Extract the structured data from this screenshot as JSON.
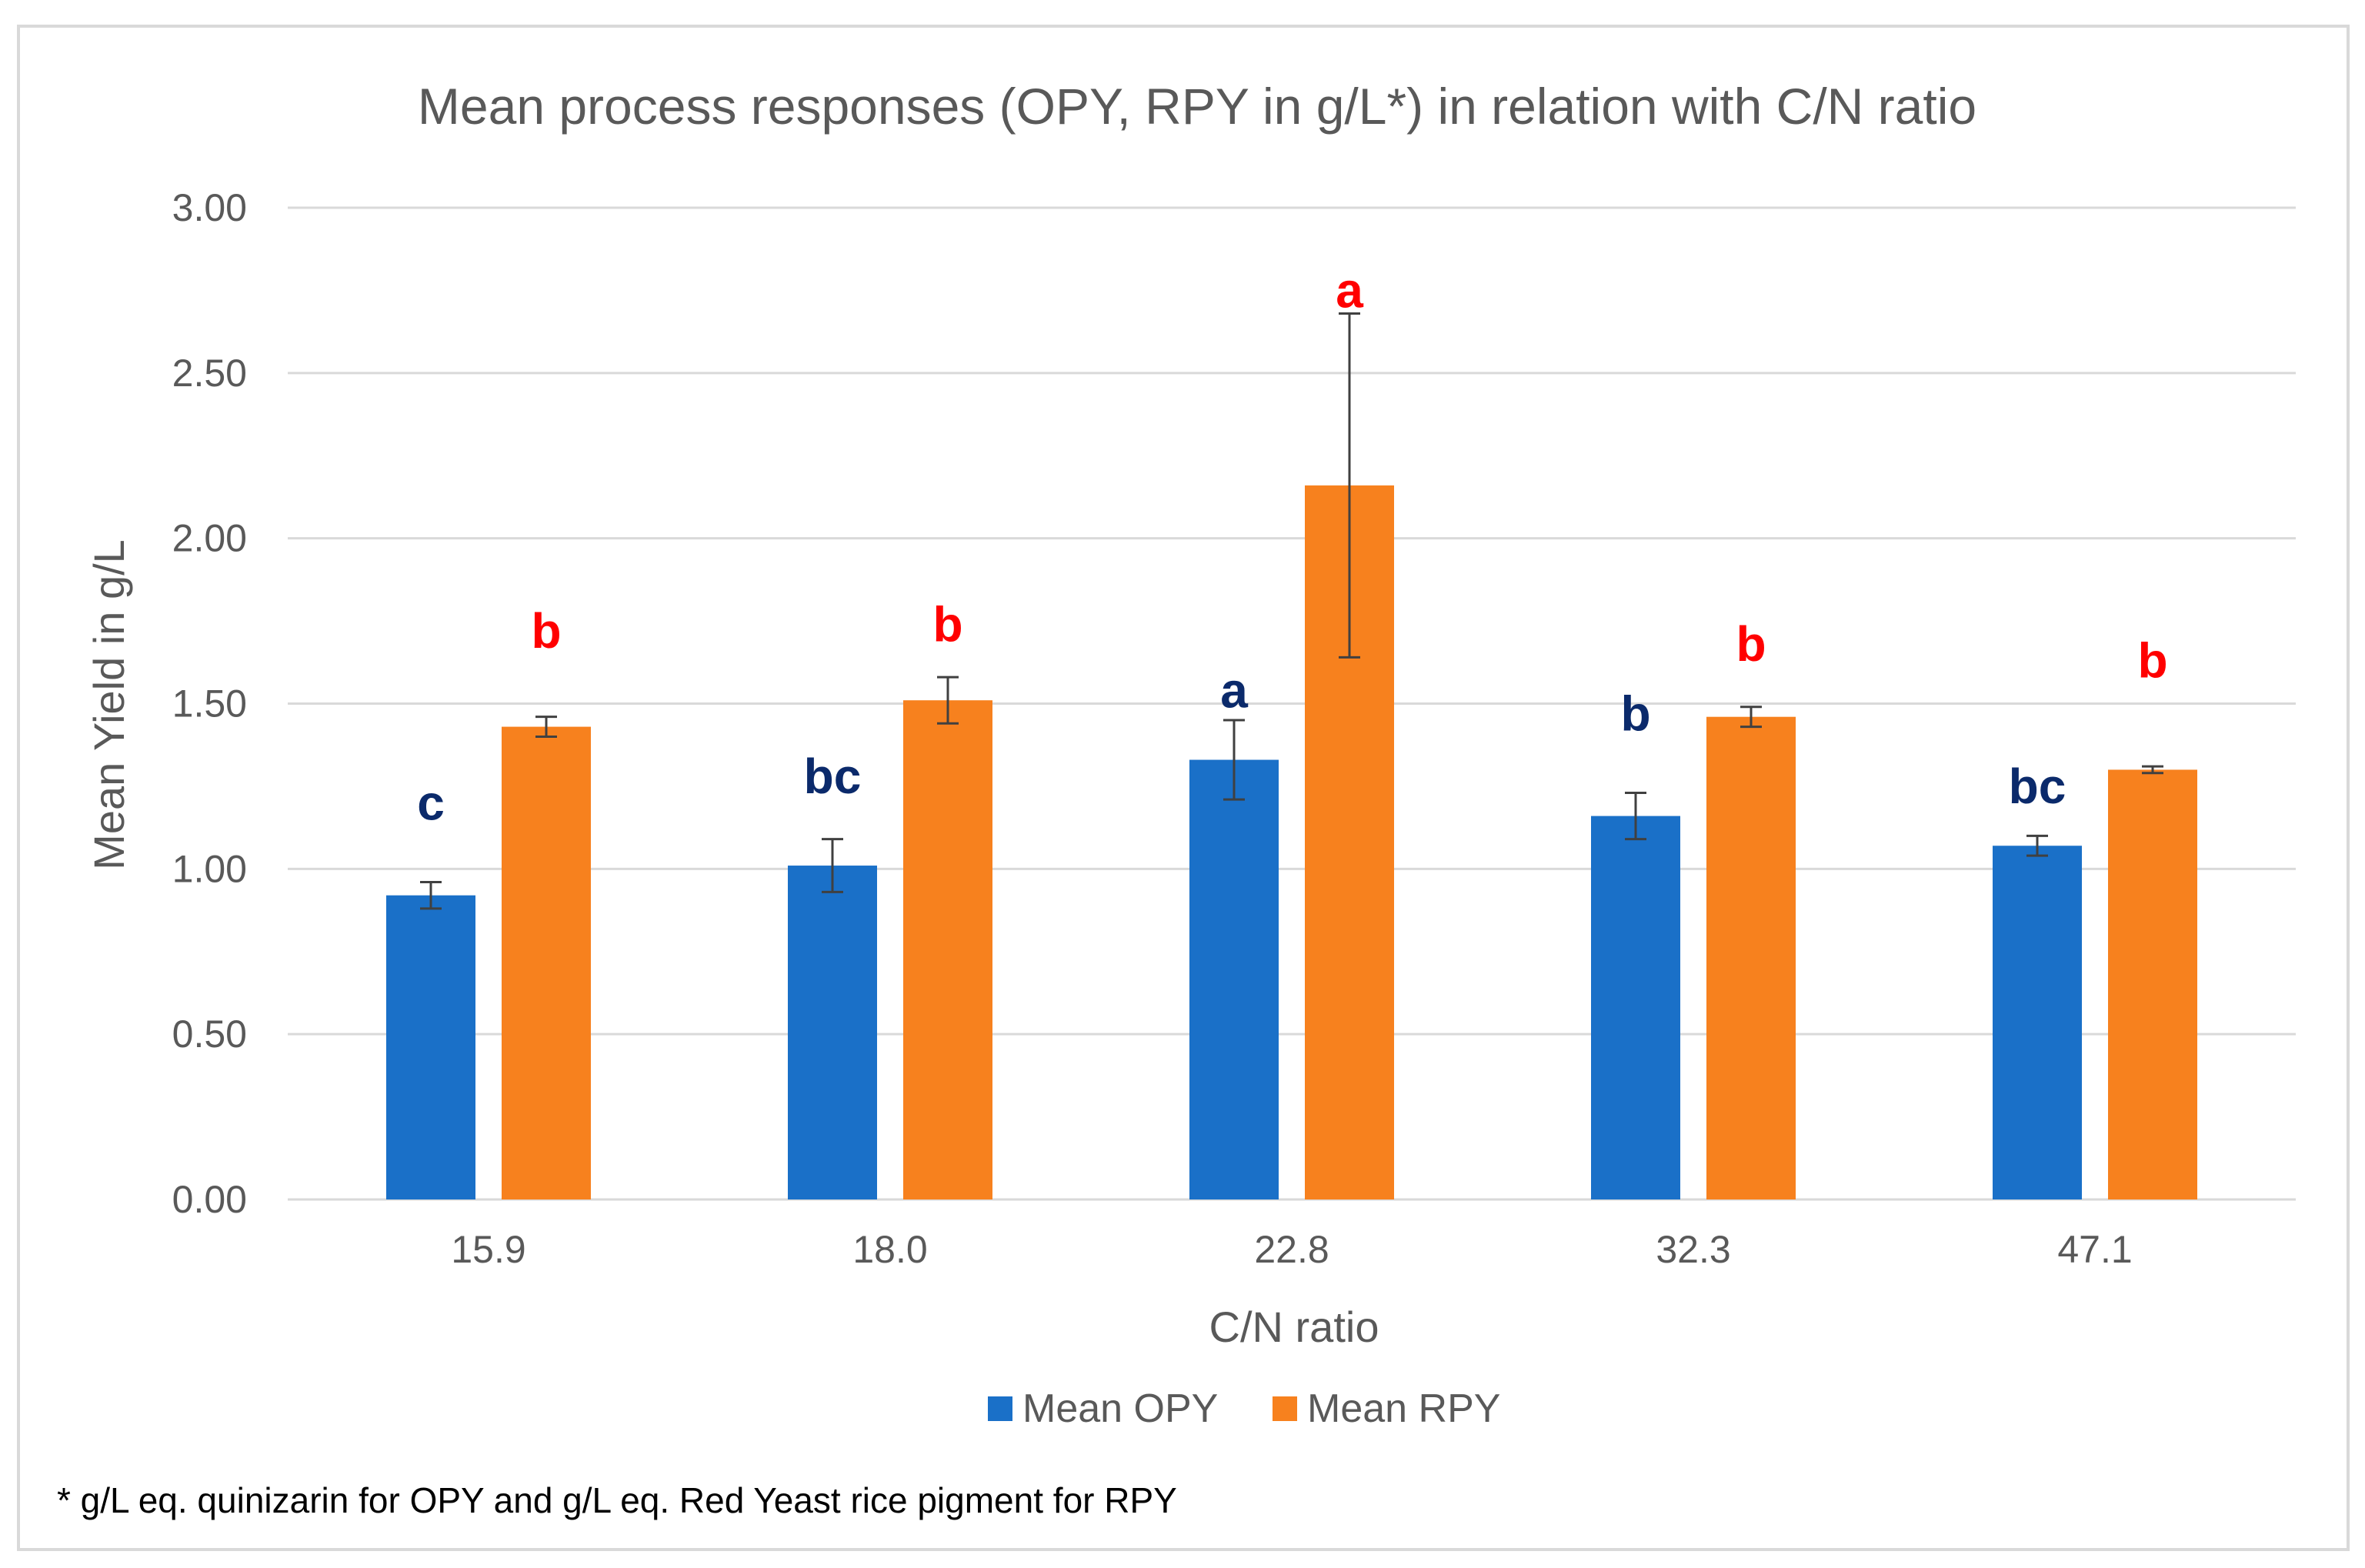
{
  "chart_data": {
    "type": "bar",
    "title": "Mean process responses (OPY, RPY in g/L*)  in relation with C/N ratio",
    "xlabel": "C/N ratio",
    "ylabel": "Mean Yield in g/L",
    "ylim": [
      0,
      3
    ],
    "ytick_values": [
      0,
      0.5,
      1,
      1.5,
      2,
      2.5,
      3
    ],
    "ytick_labels": [
      "0.00",
      "0.50",
      "1.00",
      "1.50",
      "2.00",
      "2.50",
      "3.00"
    ],
    "grid": true,
    "legend_position": "bottom",
    "categories": [
      "15.9",
      "18.0",
      "22.8",
      "32.3",
      "47.1"
    ],
    "series": [
      {
        "name": "Mean OPY",
        "color": "#1a70c8",
        "label_color": "#0b2a6b",
        "values": [
          0.92,
          1.01,
          1.33,
          1.16,
          1.07
        ],
        "errors": [
          0.04,
          0.08,
          0.12,
          0.07,
          0.03
        ],
        "letters": [
          "c",
          "bc",
          "a",
          "b",
          "bc"
        ],
        "letter_y": [
          1.2,
          1.28,
          1.54,
          1.47,
          1.25
        ]
      },
      {
        "name": "Mean RPY",
        "color": "#f7811e",
        "label_color": "#ff0000",
        "values": [
          1.43,
          1.51,
          2.16,
          1.46,
          1.3
        ],
        "errors": [
          0.03,
          0.07,
          0.52,
          0.03,
          0.01
        ],
        "letters": [
          "b",
          "b",
          "a",
          "b",
          "b"
        ],
        "letter_y": [
          1.72,
          1.74,
          2.75,
          1.68,
          1.63
        ]
      }
    ]
  },
  "footnote": "* g/L eq. quinizarin for OPY and g/L eq. Red Yeast rice pigment for RPY"
}
